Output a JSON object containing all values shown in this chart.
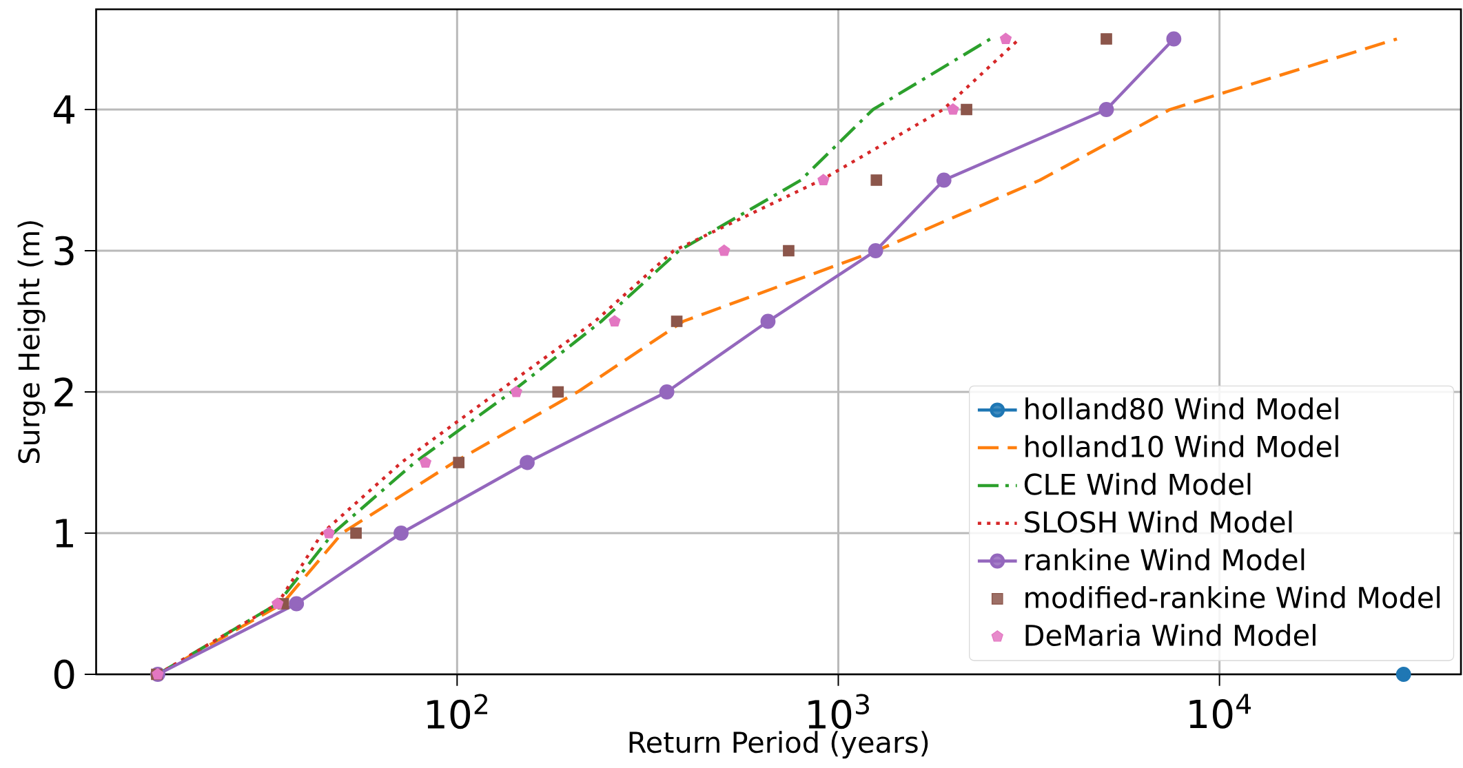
{
  "chart_data": {
    "type": "line",
    "xlabel": "Return Period (years)",
    "ylabel": "Surge Height (m)",
    "log": "x",
    "grid": true,
    "legend": "bottom right",
    "xlim": [
      11.3,
      43000
    ],
    "ylim": [
      0,
      4.71
    ],
    "xticks": [
      {
        "value": 100,
        "label": "10$^{2}$"
      },
      {
        "value": 1000,
        "label": "10$^{3}$"
      },
      {
        "value": 10000,
        "label": "10$^{4}$"
      }
    ],
    "yticks": [
      0,
      1,
      2,
      3,
      4
    ],
    "series": [
      {
        "name": "holland80 Wind Model",
        "color": "#1f77b4",
        "marker": "circle",
        "line_style": "solid",
        "x": [
          30400
        ],
        "values": [
          0
        ]
      },
      {
        "name": "holland10 Wind Model",
        "color": "#ff7f0e",
        "marker": "none",
        "line_style": "dashed",
        "x": [
          16.4,
          34.8,
          49.9,
          98,
          207,
          392,
          1259,
          3380,
          7410,
          29200
        ],
        "values": [
          0,
          0.5,
          1,
          1.5,
          2,
          2.5,
          3,
          3.5,
          4,
          4.5
        ]
      },
      {
        "name": "CLE Wind Model",
        "color": "#2ca02c",
        "marker": "none",
        "line_style": "dashdot",
        "x": [
          16.4,
          33.8,
          47.3,
          77.4,
          139,
          239,
          382,
          798,
          1233,
          2505
        ],
        "values": [
          0,
          0.5,
          1,
          1.5,
          2,
          2.5,
          3,
          3.5,
          4,
          4.5
        ]
      },
      {
        "name": "SLOSH Wind Model",
        "color": "#d62728",
        "marker": "none",
        "line_style": "dotted",
        "x": [
          16.4,
          33.8,
          44.3,
          71.4,
          128,
          230,
          370,
          902,
          1884,
          2985
        ],
        "values": [
          0,
          0.5,
          1,
          1.5,
          2,
          2.5,
          3,
          3.5,
          4,
          4.5
        ]
      },
      {
        "name": "rankine Wind Model",
        "color": "#9467bd",
        "marker": "circle",
        "line_style": "solid",
        "x": [
          16.4,
          37.9,
          71.3,
          152.7,
          355,
          654,
          1253,
          1893,
          5050,
          7590
        ],
        "values": [
          0,
          0.5,
          1,
          1.5,
          2,
          2.5,
          3,
          3.5,
          4,
          4.5
        ]
      },
      {
        "name": "modified-rankine Wind Model",
        "type": "scatter",
        "color": "#8c564b",
        "marker": "square",
        "x": [
          16.3,
          35,
          54.3,
          101,
          184,
          377,
          741,
          1259,
          2170,
          5050
        ],
        "values": [
          0,
          0.5,
          1,
          1.5,
          2,
          2.5,
          3,
          3.5,
          4,
          4.5
        ]
      },
      {
        "name": "DeMaria Wind Model",
        "type": "scatter",
        "color": "#e377c2",
        "x": [
          16.4,
          33.8,
          46.1,
          82.6,
          143,
          259,
          502,
          914,
          2000,
          2750
        ],
        "values": [
          0,
          0.5,
          1,
          1.5,
          2,
          2.5,
          3,
          3.5,
          4,
          4.5
        ]
      }
    ]
  }
}
